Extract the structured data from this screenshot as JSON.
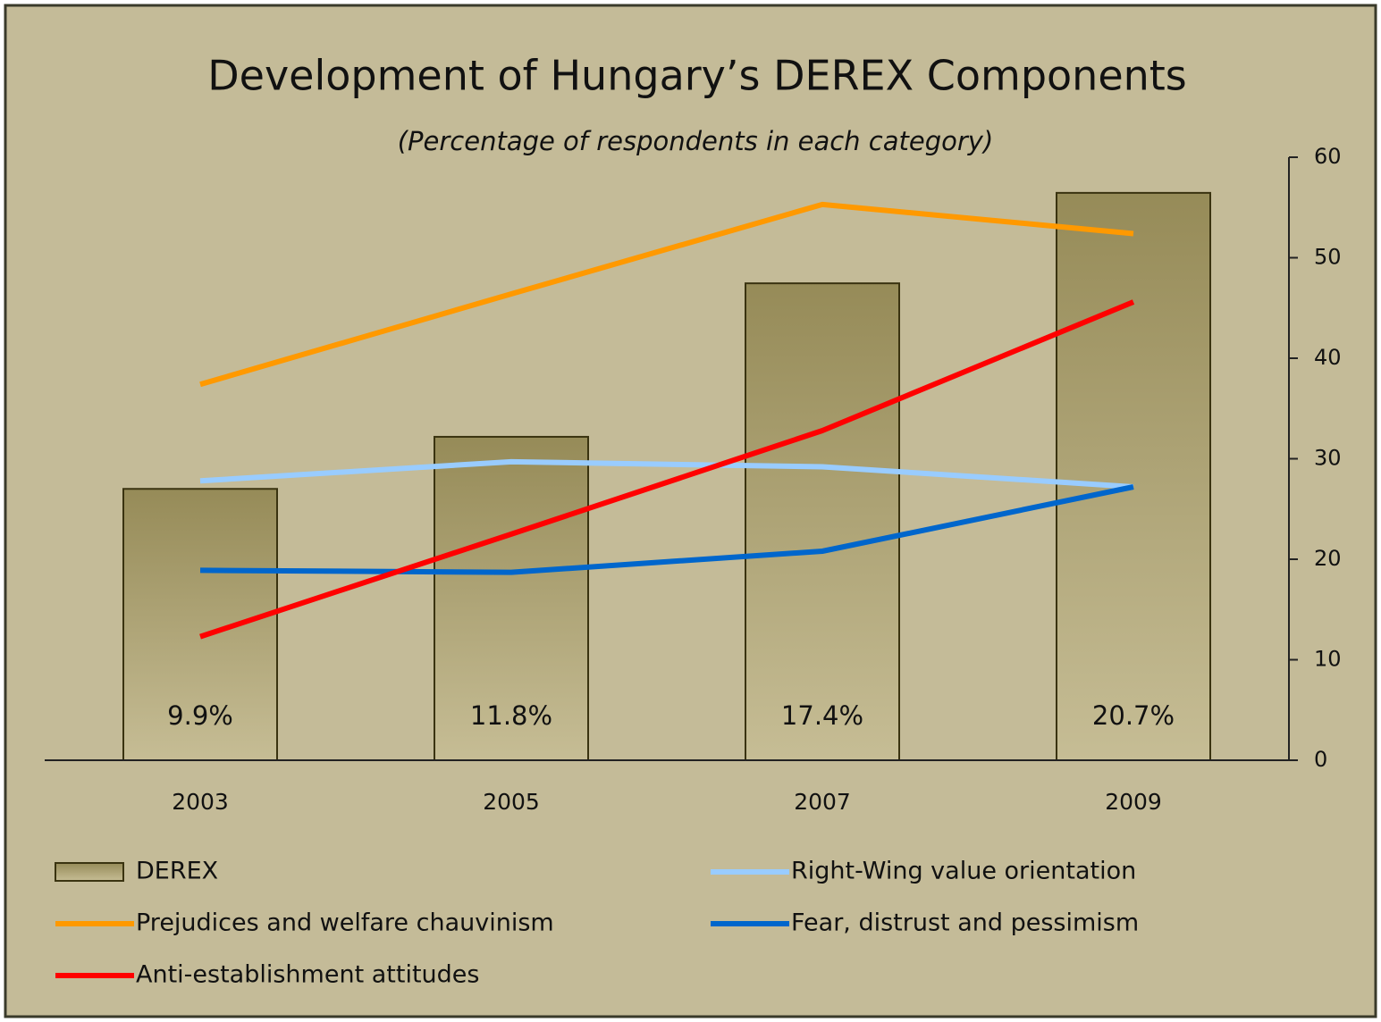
{
  "chart_data": {
    "type": "combo",
    "title": "Development of Hungary’s DEREX Components",
    "subtitle": "(Percentage of respondents in each category)",
    "categories": [
      "2003",
      "2005",
      "2007",
      "2009"
    ],
    "series": [
      {
        "name": "DEREX",
        "type": "bar",
        "axis": "y2",
        "color": "#9a8f5e",
        "values": [
          9.9,
          11.8,
          17.4,
          20.7
        ],
        "value_labels": [
          "9.9%",
          "11.8%",
          "17.4%",
          "20.7%"
        ]
      },
      {
        "name": "Right-Wing value orientation",
        "type": "line",
        "color": "#99ccff",
        "values": [
          27.8,
          29.7,
          29.2,
          27.2
        ]
      },
      {
        "name": "Prejudices and welfare chauvinism",
        "type": "line",
        "color": "#ff9900",
        "values": [
          37.4,
          46.4,
          55.3,
          52.4
        ]
      },
      {
        "name": "Fear, distrust and pessimism",
        "type": "line",
        "color": "#0066cc",
        "values": [
          18.9,
          18.7,
          20.8,
          27.2
        ]
      },
      {
        "name": "Anti-establishment attitudes",
        "type": "line",
        "color": "#ff0000",
        "values": [
          12.3,
          22.5,
          32.8,
          45.6
        ]
      }
    ],
    "ylim": [
      0,
      60
    ],
    "yticks": [
      0,
      10,
      20,
      30,
      40,
      50,
      60
    ],
    "y2lim": [
      0,
      22
    ],
    "grid": false,
    "legend": "bottom"
  }
}
